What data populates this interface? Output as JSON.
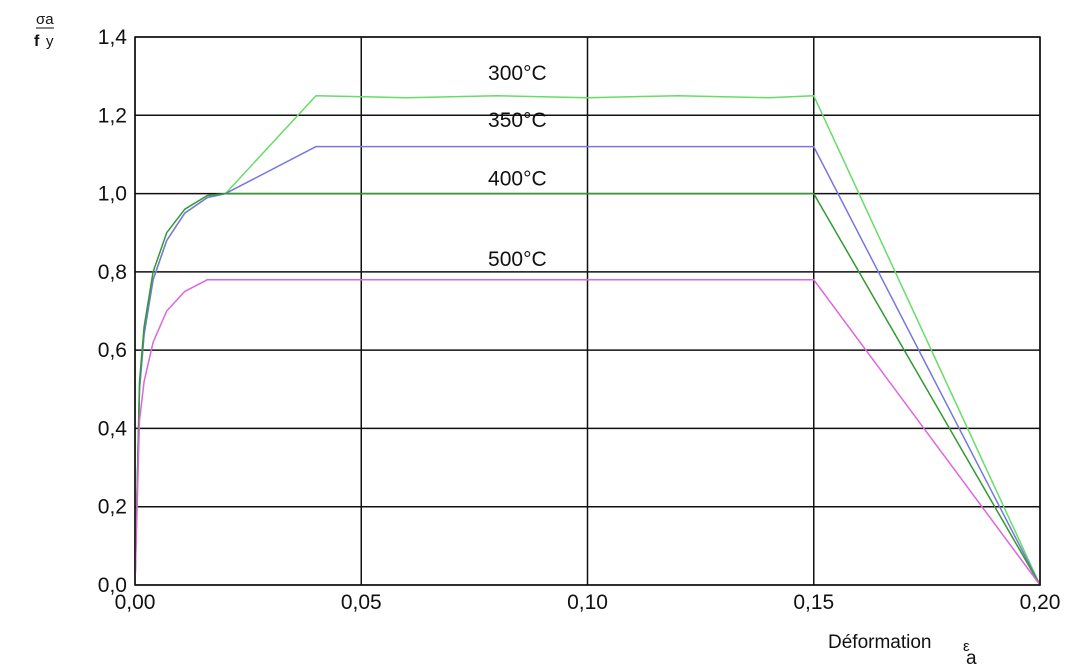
{
  "chart_data": {
    "type": "line",
    "title": "",
    "xlabel": "Déformation",
    "xlabel_symbol": "ε",
    "xlabel_symbol_sub": "a",
    "ylabel_numerator": "σa",
    "ylabel_denominator_main": "f",
    "ylabel_denominator_sub": "y",
    "xlim": [
      0,
      0.2
    ],
    "ylim": [
      0,
      1.4
    ],
    "grid": true,
    "x_ticks": [
      0,
      0.05,
      0.1,
      0.15,
      0.2
    ],
    "x_tick_labels": [
      "0,00",
      "0,05",
      "0,10",
      "0,15",
      "0,20"
    ],
    "y_ticks": [
      0,
      0.2,
      0.4,
      0.6,
      0.8,
      1.0,
      1.2,
      1.4
    ],
    "y_tick_labels": [
      "0,0",
      "0,2",
      "0,4",
      "0,6",
      "0,8",
      "1,0",
      "1,2",
      "1,4"
    ],
    "series": [
      {
        "name": "300°C",
        "label_at": [
          0.0845,
          1.29
        ],
        "color": "#66dd66",
        "x": [
          0,
          0.001,
          0.002,
          0.004,
          0.007,
          0.011,
          0.016,
          0.02,
          0.04,
          0.06,
          0.08,
          0.1,
          0.12,
          0.14,
          0.15,
          0.2
        ],
        "y": [
          0,
          0.5,
          0.64,
          0.78,
          0.88,
          0.95,
          0.99,
          1.0,
          1.25,
          1.245,
          1.25,
          1.245,
          1.25,
          1.245,
          1.25,
          0
        ]
      },
      {
        "name": "350°C",
        "label_at": [
          0.0845,
          1.17
        ],
        "color": "#7777dd",
        "x": [
          0,
          0.001,
          0.002,
          0.004,
          0.007,
          0.011,
          0.016,
          0.02,
          0.04,
          0.15,
          0.2
        ],
        "y": [
          0,
          0.5,
          0.64,
          0.78,
          0.88,
          0.95,
          0.99,
          1.0,
          1.12,
          1.12,
          0
        ]
      },
      {
        "name": "400°C",
        "label_at": [
          0.0845,
          1.02
        ],
        "color": "#339933",
        "x": [
          0,
          0.001,
          0.002,
          0.004,
          0.007,
          0.011,
          0.016,
          0.02,
          0.15,
          0.2
        ],
        "y": [
          0,
          0.52,
          0.66,
          0.8,
          0.9,
          0.96,
          0.995,
          1.0,
          1.0,
          0
        ]
      },
      {
        "name": "500°C",
        "label_at": [
          0.0845,
          0.815
        ],
        "color": "#dd66dd",
        "x": [
          0,
          0.001,
          0.002,
          0.004,
          0.007,
          0.011,
          0.016,
          0.02,
          0.15,
          0.2
        ],
        "y": [
          0,
          0.42,
          0.52,
          0.62,
          0.7,
          0.75,
          0.78,
          0.78,
          0.78,
          0
        ]
      }
    ]
  }
}
